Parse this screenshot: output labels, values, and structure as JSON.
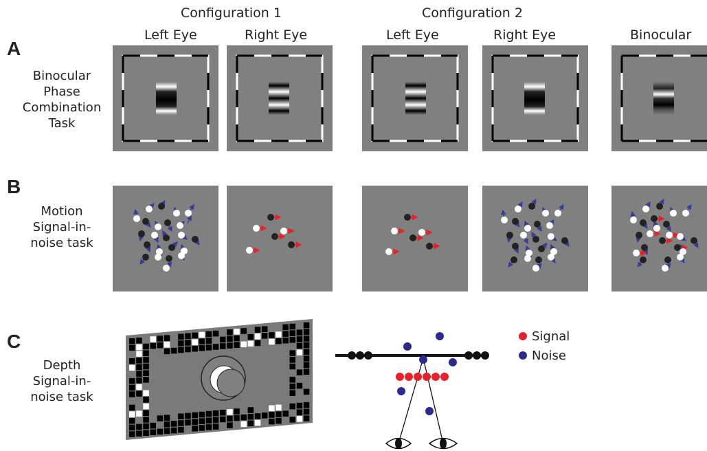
{
  "headers": {
    "config1": "Configuration 1",
    "config2": "Configuration 2",
    "c1_left": "Left Eye",
    "c1_right": "Right Eye",
    "c2_left": "Left Eye",
    "c2_right": "Right Eye",
    "binocular": "Binocular"
  },
  "rows": [
    {
      "letter": "A",
      "label": "Binocular\nPhase\nCombination\nTask"
    },
    {
      "letter": "B",
      "label": "Motion\nSignal-in-\nnoise task"
    },
    {
      "letter": "C",
      "label": "Depth\nSignal-in-\nnoise task"
    }
  ],
  "legend": {
    "signal": {
      "label": "Signal",
      "color": "#e8202a"
    },
    "noise": {
      "label": "Noise",
      "color": "#2b2a8f"
    }
  },
  "colors": {
    "stimulus_gray": "#808080",
    "signal_arrow": "#e8202a",
    "noise_arrow": "#3a3a9a"
  }
}
